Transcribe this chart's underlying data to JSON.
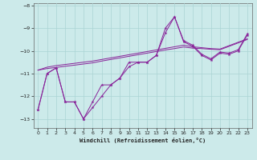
{
  "xlabel": "Windchill (Refroidissement éolien,°C)",
  "background_color": "#cceaea",
  "grid_color": "#aad4d4",
  "line_color": "#882299",
  "x": [
    0,
    1,
    2,
    3,
    4,
    5,
    6,
    7,
    8,
    9,
    10,
    11,
    12,
    13,
    14,
    15,
    16,
    17,
    18,
    19,
    20,
    21,
    22,
    23
  ],
  "y_jagged1": [
    -12.6,
    -11.0,
    -10.75,
    -12.25,
    -12.25,
    -13.0,
    -12.5,
    -12.0,
    -11.5,
    -11.2,
    -10.7,
    -10.5,
    -10.5,
    -10.2,
    -9.0,
    -8.5,
    -9.6,
    -9.8,
    -10.2,
    -10.4,
    -10.1,
    -10.15,
    -10.0,
    -9.3
  ],
  "y_jagged2": [
    -12.6,
    -11.0,
    -10.75,
    -12.25,
    -12.25,
    -13.0,
    -12.25,
    -11.5,
    -11.5,
    -11.2,
    -10.5,
    -10.5,
    -10.5,
    -10.2,
    -9.2,
    -8.5,
    -9.55,
    -9.75,
    -10.15,
    -10.35,
    -10.05,
    -10.1,
    -9.95,
    -9.25
  ],
  "y_flat1": [
    -10.85,
    -10.78,
    -10.73,
    -10.68,
    -10.63,
    -10.58,
    -10.53,
    -10.45,
    -10.38,
    -10.31,
    -10.24,
    -10.17,
    -10.1,
    -10.03,
    -9.96,
    -9.9,
    -9.83,
    -9.88,
    -9.9,
    -9.93,
    -9.95,
    -9.8,
    -9.65,
    -9.5
  ],
  "y_flat2": [
    -10.85,
    -10.72,
    -10.65,
    -10.6,
    -10.55,
    -10.5,
    -10.45,
    -10.38,
    -10.31,
    -10.24,
    -10.17,
    -10.1,
    -10.03,
    -9.96,
    -9.89,
    -9.82,
    -9.75,
    -9.82,
    -9.86,
    -9.9,
    -9.92,
    -9.77,
    -9.62,
    -9.47
  ],
  "ylim": [
    -13.4,
    -7.9
  ],
  "xlim": [
    -0.5,
    23.5
  ],
  "yticks": [
    -13,
    -12,
    -11,
    -10,
    -9,
    -8
  ],
  "xticks": [
    0,
    1,
    2,
    3,
    4,
    5,
    6,
    7,
    8,
    9,
    10,
    11,
    12,
    13,
    14,
    15,
    16,
    17,
    18,
    19,
    20,
    21,
    22,
    23
  ],
  "figsize": [
    3.2,
    2.0
  ],
  "dpi": 100
}
